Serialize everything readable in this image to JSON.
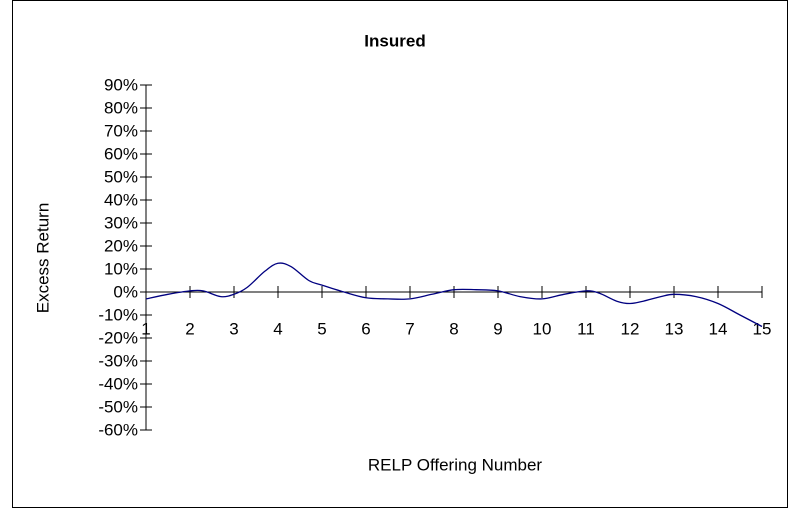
{
  "chart_data": {
    "type": "line",
    "title": "Insured",
    "xlabel": "RELP Offering Number",
    "ylabel": "Excess Return",
    "x": [
      1,
      1.5,
      2,
      2.3,
      2.7,
      3,
      3.3,
      3.7,
      4,
      4.3,
      4.7,
      5,
      5.5,
      6,
      6.5,
      7,
      7.5,
      8,
      8.5,
      9,
      9.5,
      10,
      10.5,
      11,
      11.3,
      11.7,
      12,
      12.3,
      12.7,
      13,
      13.5,
      14,
      14.5,
      15
    ],
    "series": [
      {
        "name": "Insured",
        "color": "#000080",
        "values": [
          -3,
          -1,
          0.5,
          0.5,
          -2,
          -1,
          2,
          9,
          12.5,
          11,
          5,
          3,
          0,
          -2.5,
          -3,
          -3,
          -1,
          1,
          1,
          0.5,
          -2,
          -3,
          -1,
          0.5,
          -0.5,
          -4,
          -5,
          -4,
          -2,
          -1,
          -2,
          -5,
          -10,
          -15
        ]
      }
    ],
    "xlim": [
      1,
      15
    ],
    "xticks": [
      1,
      2,
      3,
      4,
      5,
      6,
      7,
      8,
      9,
      10,
      11,
      12,
      13,
      14,
      15
    ],
    "ylim": [
      -60,
      90
    ],
    "yticks": [
      {
        "value": 90,
        "label": "90%"
      },
      {
        "value": 80,
        "label": "80%"
      },
      {
        "value": 70,
        "label": "70%"
      },
      {
        "value": 60,
        "label": "60%"
      },
      {
        "value": 50,
        "label": "50%"
      },
      {
        "value": 40,
        "label": "40%"
      },
      {
        "value": 30,
        "label": "30%"
      },
      {
        "value": 20,
        "label": "20%"
      },
      {
        "value": 10,
        "label": "10%"
      },
      {
        "value": 0,
        "label": "0%"
      },
      {
        "value": -10,
        "label": "-10%"
      },
      {
        "value": -20,
        "label": "-20%"
      },
      {
        "value": -30,
        "label": "-30%"
      },
      {
        "value": -40,
        "label": "-40%"
      },
      {
        "value": -50,
        "label": "-50%"
      },
      {
        "value": -60,
        "label": "-60%"
      }
    ]
  }
}
